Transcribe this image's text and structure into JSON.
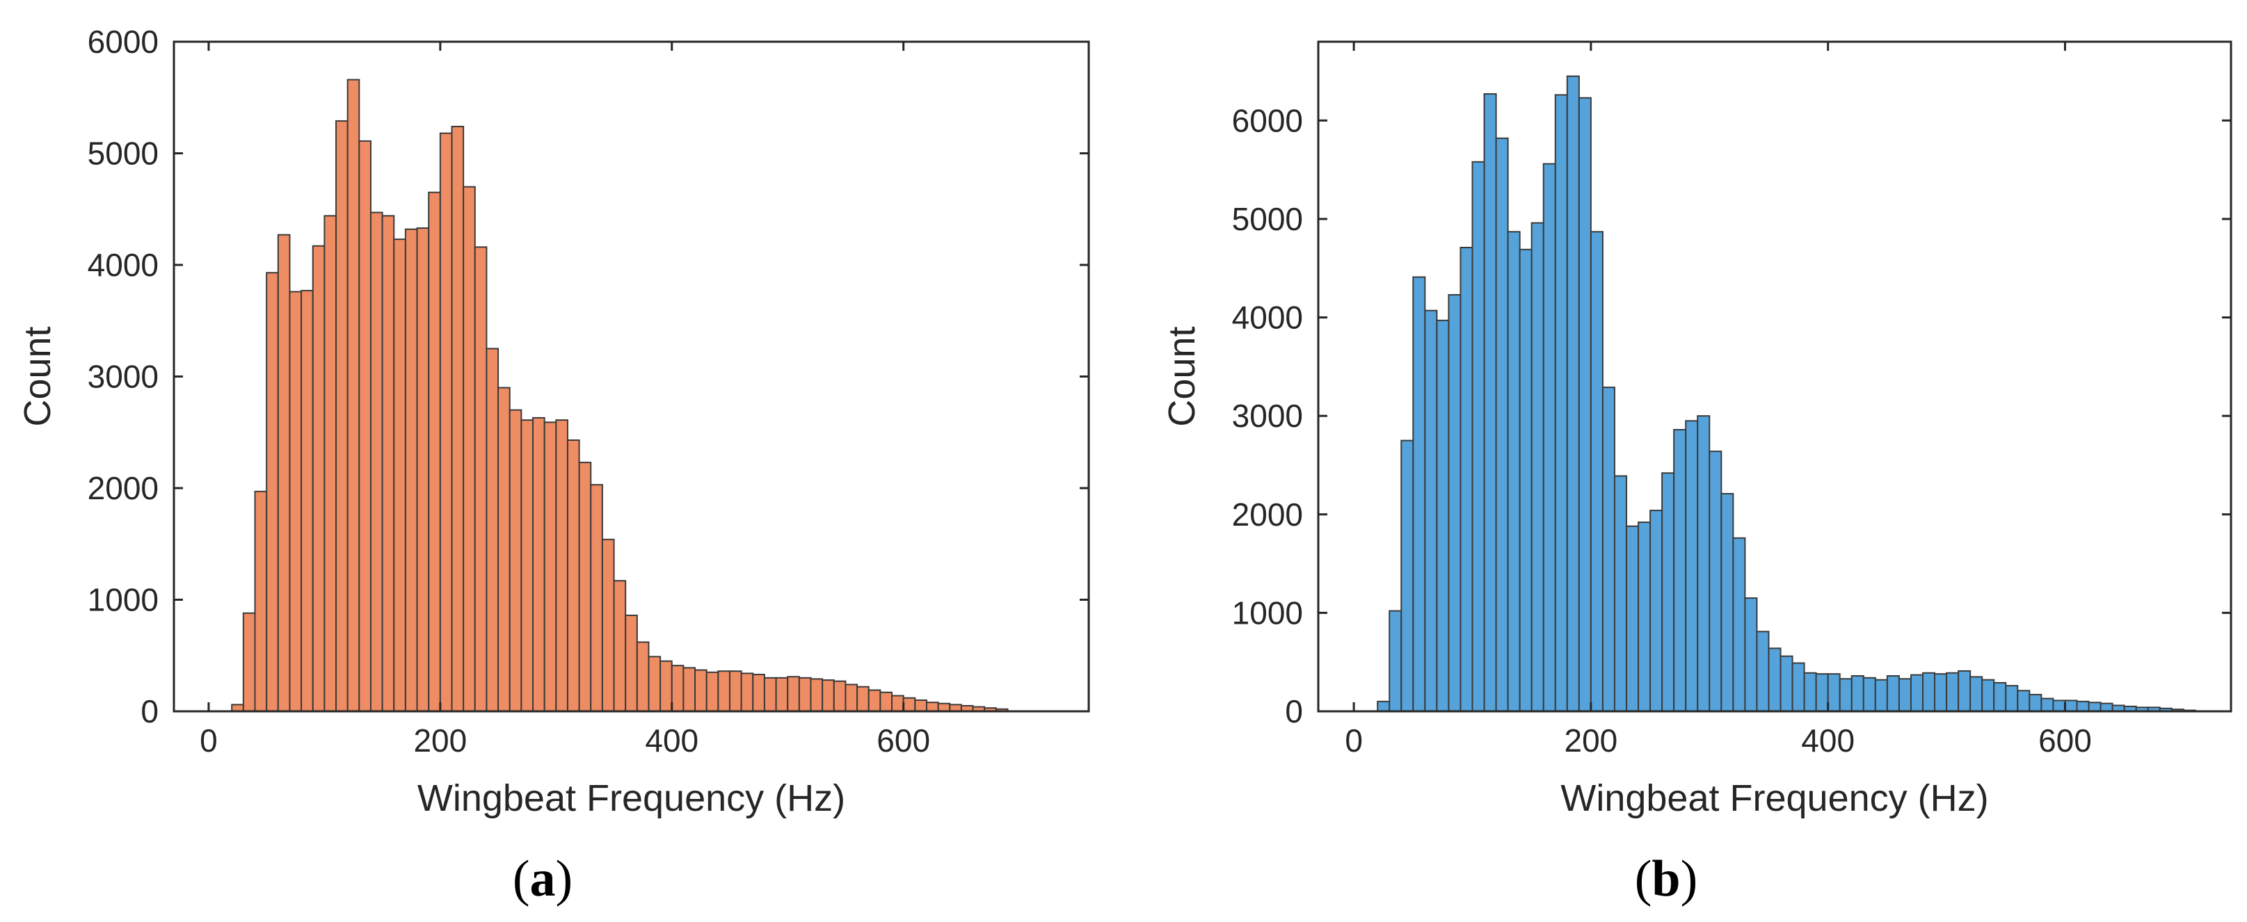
{
  "chart_data": [
    {
      "type": "bar",
      "panel_label": "a",
      "xlabel": "Wingbeat Frequency (Hz)",
      "ylabel": "Count",
      "xlim": [
        -30,
        760
      ],
      "ylim": [
        0,
        6000
      ],
      "xticks": [
        0,
        200,
        400,
        600
      ],
      "yticks": [
        0,
        1000,
        2000,
        3000,
        4000,
        5000,
        6000
      ],
      "bin_start": 20,
      "bin_width": 10,
      "bar_color": "#EE8C63",
      "edge_color": "#3a3a3a",
      "grid": false,
      "values": [
        60,
        880,
        1970,
        3930,
        4270,
        3760,
        3770,
        4170,
        4440,
        5290,
        5660,
        5110,
        4470,
        4440,
        4230,
        4320,
        4330,
        4650,
        5180,
        5240,
        4700,
        4160,
        3250,
        2900,
        2700,
        2610,
        2630,
        2590,
        2610,
        2430,
        2230,
        2030,
        1540,
        1170,
        860,
        620,
        490,
        450,
        410,
        390,
        370,
        350,
        360,
        360,
        340,
        330,
        300,
        300,
        310,
        300,
        290,
        280,
        270,
        240,
        220,
        190,
        170,
        140,
        120,
        100,
        80,
        70,
        60,
        50,
        40,
        30,
        20
      ]
    },
    {
      "type": "bar",
      "panel_label": "b",
      "xlabel": "Wingbeat Frequency (Hz)",
      "ylabel": "Count",
      "xlim": [
        -30,
        740
      ],
      "ylim": [
        0,
        6800
      ],
      "xticks": [
        0,
        200,
        400,
        600
      ],
      "yticks": [
        0,
        1000,
        2000,
        3000,
        4000,
        5000,
        6000
      ],
      "bin_start": 20,
      "bin_width": 10,
      "bar_color": "#55A3DA",
      "edge_color": "#3a3a3a",
      "grid": false,
      "values": [
        100,
        1020,
        2750,
        4410,
        4070,
        3970,
        4230,
        4710,
        5580,
        6270,
        5820,
        4870,
        4690,
        4960,
        5560,
        6260,
        6450,
        6230,
        4870,
        3290,
        2390,
        1880,
        1920,
        2040,
        2420,
        2860,
        2950,
        3000,
        2640,
        2210,
        1760,
        1150,
        810,
        640,
        560,
        490,
        390,
        380,
        380,
        330,
        360,
        340,
        320,
        360,
        330,
        370,
        390,
        380,
        390,
        410,
        350,
        320,
        290,
        260,
        210,
        170,
        130,
        110,
        110,
        100,
        90,
        80,
        60,
        50,
        40,
        40,
        30,
        20,
        10
      ]
    }
  ]
}
